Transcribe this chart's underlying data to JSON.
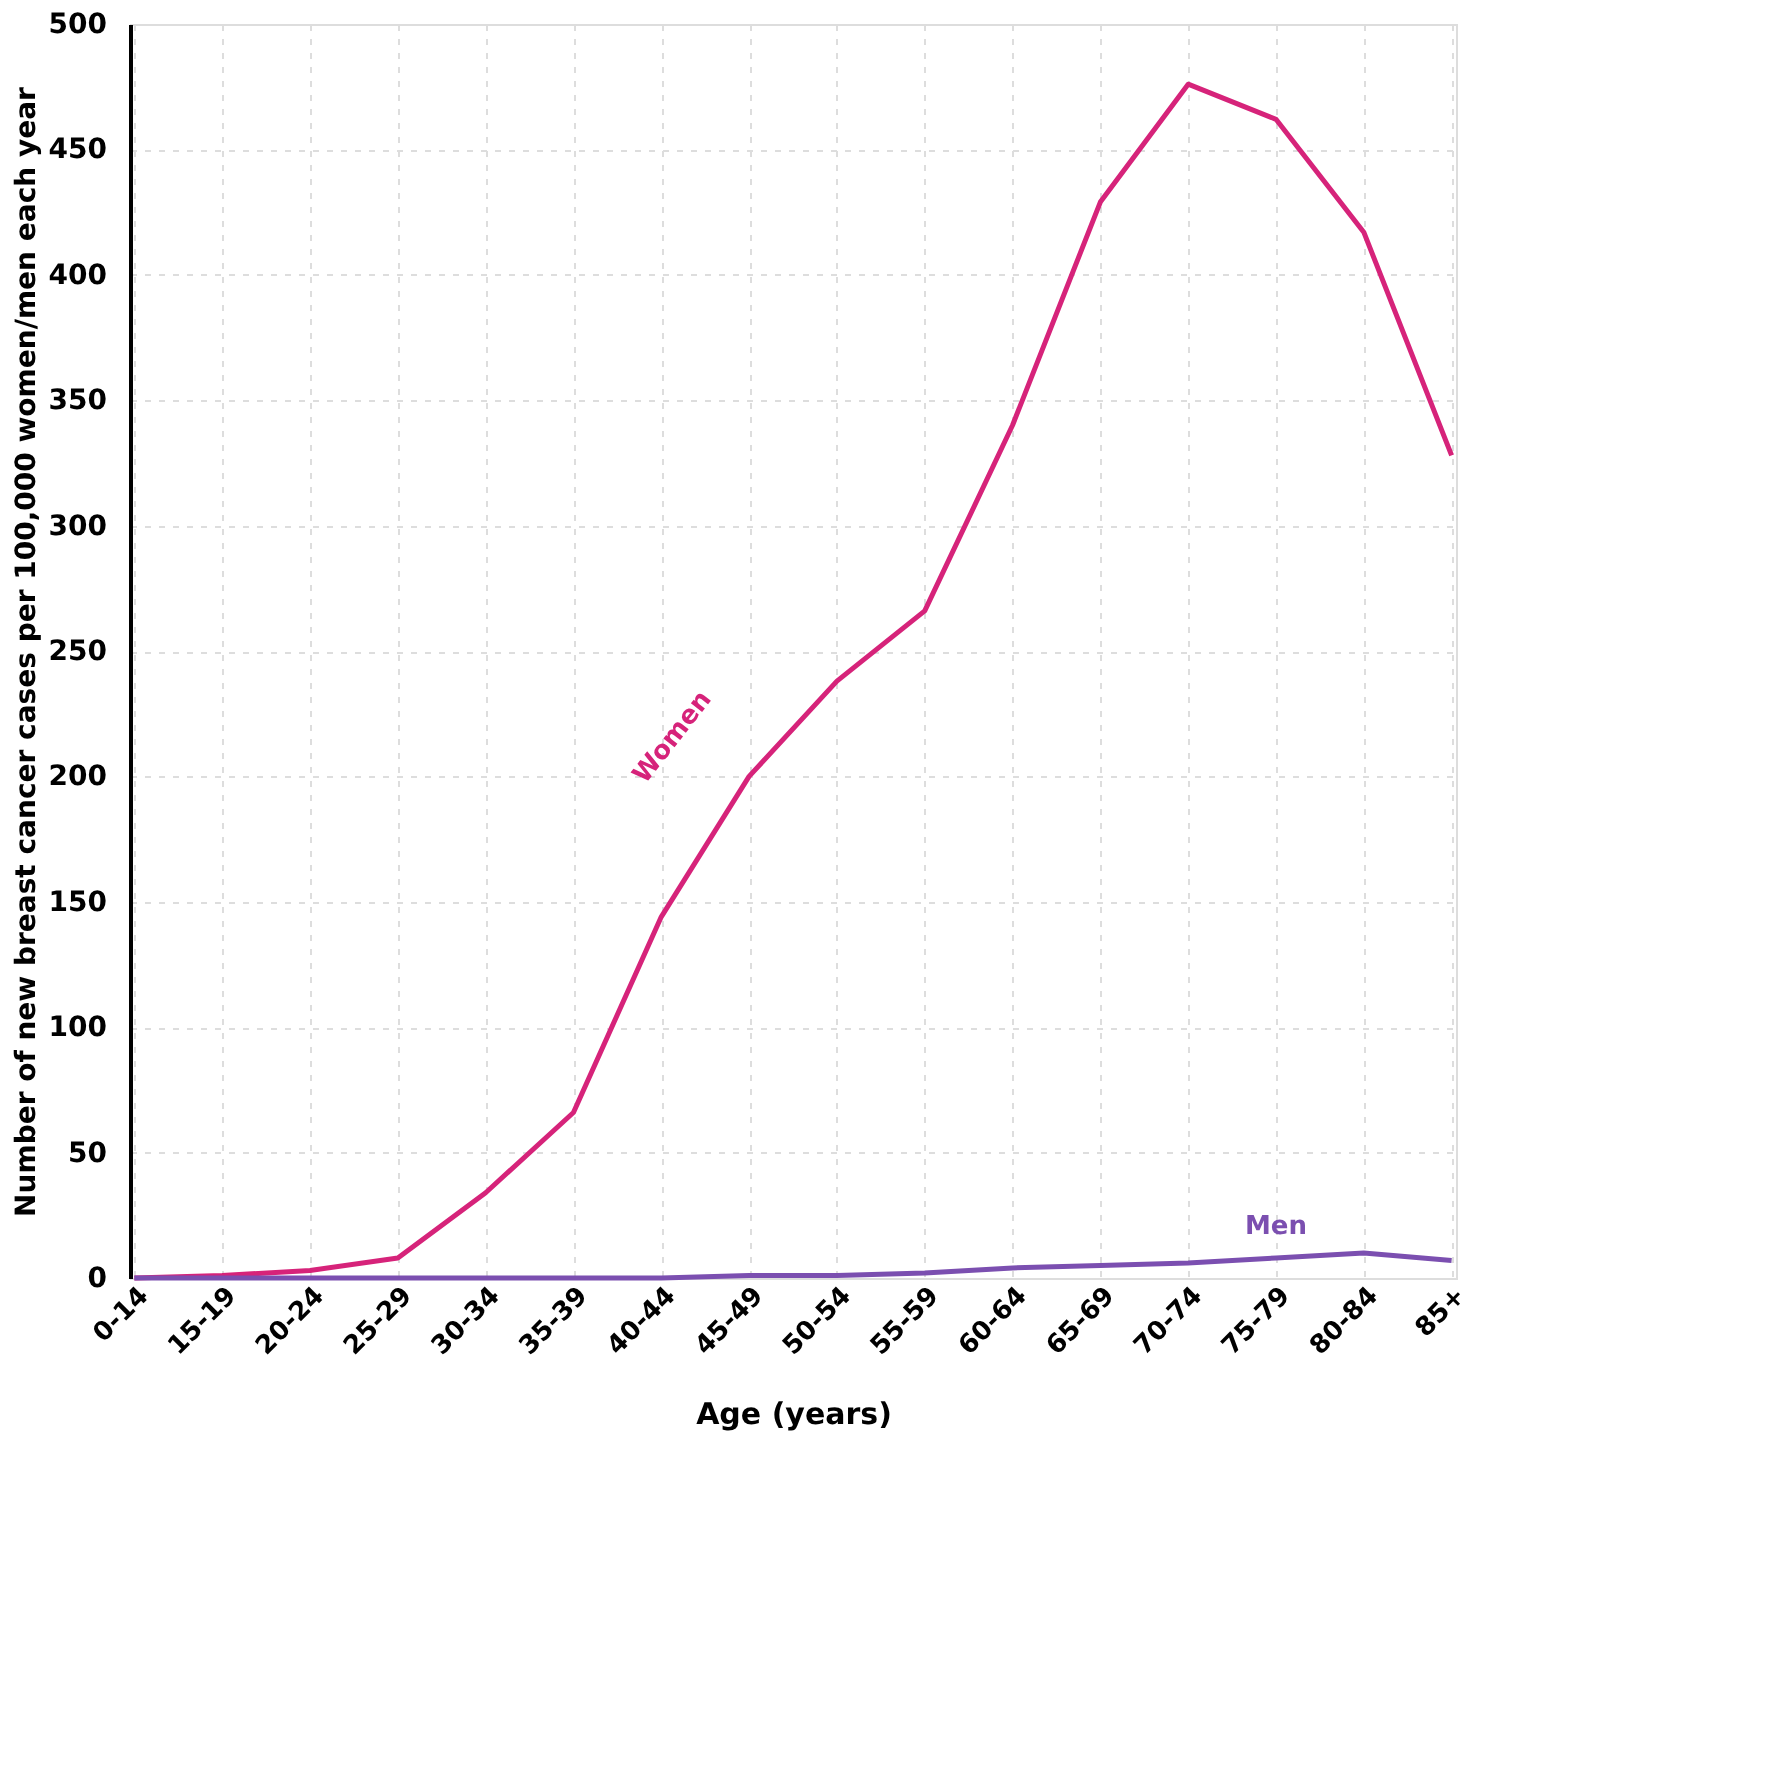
{
  "chart_data": {
    "type": "line",
    "xlabel": "Age (years)",
    "ylabel": "Number of new breast cancer cases per 100,000 women/men each year",
    "categories": [
      "0-14",
      "15-19",
      "20-24",
      "25-29",
      "30-34",
      "35-39",
      "40-44",
      "45-49",
      "50-54",
      "55-59",
      "60-64",
      "65-69",
      "70-74",
      "75-79",
      "80-84",
      "85+"
    ],
    "series": [
      {
        "name": "Women",
        "color": "#d6237a",
        "values": [
          0,
          1,
          3,
          8,
          34,
          66,
          144,
          200,
          238,
          266,
          340,
          429,
          476,
          462,
          417,
          328
        ]
      },
      {
        "name": "Men",
        "color": "#7b4fb0",
        "values": [
          0,
          0,
          0,
          0,
          0,
          0,
          0,
          1,
          1,
          2,
          4,
          5,
          6,
          8,
          10,
          7
        ]
      }
    ],
    "ylim": [
      0,
      500
    ],
    "yticks": [
      0,
      50,
      100,
      150,
      200,
      250,
      300,
      350,
      400,
      450,
      500
    ],
    "grid": true,
    "legend": false,
    "line_style": "solid",
    "marker": "none"
  }
}
